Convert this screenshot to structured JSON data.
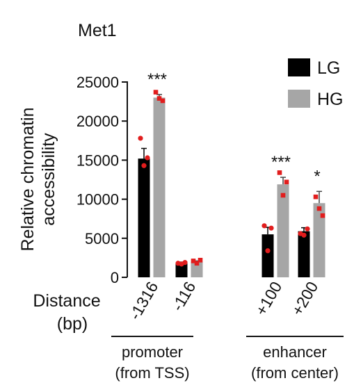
{
  "chart_data": {
    "type": "bar",
    "title": "Met1",
    "ylabel": "Relative chromatin accessibility",
    "ylabel_lines": [
      "Relative chromatin",
      "accessibility"
    ],
    "xlabel_lines": [
      "Distance",
      "(bp)"
    ],
    "ylim": [
      0,
      25000
    ],
    "yticks": [
      0,
      5000,
      10000,
      15000,
      20000,
      25000
    ],
    "categories": [
      "-1316",
      "-116",
      "+100",
      "+200"
    ],
    "groups": [
      {
        "label_lines": [
          "promoter",
          "(from TSS)"
        ]
      },
      {
        "label_lines": [
          "enhancer",
          "(from center)"
        ]
      }
    ],
    "series": [
      {
        "name": "LG",
        "color": "#000000",
        "values": [
          15200,
          1800,
          5500,
          5900
        ],
        "errors": [
          1300,
          150,
          900,
          450
        ],
        "points": [
          [
            17800,
            14300,
            15300
          ],
          [
            1800,
            1700,
            1900
          ],
          [
            6600,
            3400,
            6300
          ],
          [
            5600,
            5400,
            6200
          ]
        ]
      },
      {
        "name": "HG",
        "color": "#a6a6a6",
        "values": [
          23000,
          2000,
          11900,
          9500
        ],
        "errors": [
          400,
          100,
          900,
          1500
        ],
        "points": [
          [
            23700,
            22900,
            22600
          ],
          [
            2100,
            1800,
            2200
          ],
          [
            13400,
            10500,
            12200
          ],
          [
            10300,
            8800,
            7900
          ]
        ]
      }
    ],
    "point_color": "#e11d1d",
    "significance": [
      "***",
      "",
      "***",
      "*"
    ],
    "legend_position": "top-right",
    "grid": false
  }
}
